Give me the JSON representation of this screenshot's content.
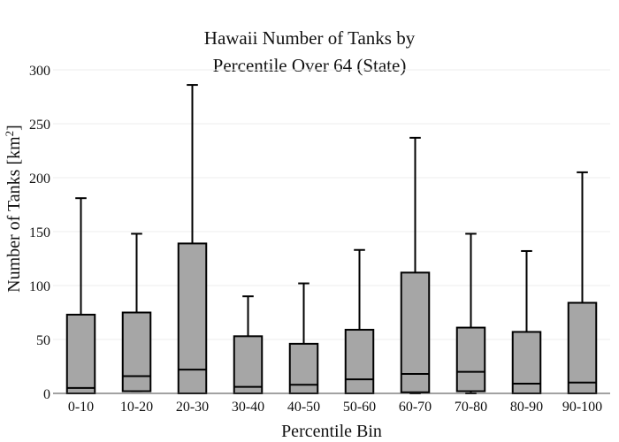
{
  "chart_data": {
    "type": "box",
    "title_lines": [
      "Hawaii Number of Tanks by",
      "Percentile Over 64 (State)"
    ],
    "xlabel": "Percentile Bin",
    "ylabel_main": "Number of Tanks  [km",
    "ylabel_sup": "2",
    "ylabel_close": "]",
    "ylim": [
      0,
      300
    ],
    "yticks": [
      "0",
      "50",
      "100",
      "150",
      "200",
      "250",
      "300"
    ],
    "grid": true,
    "colors": {
      "box_fill": "#a6a6a6",
      "stroke": "#000000",
      "grid": "#eeeeee"
    },
    "categories": [
      "0-10",
      "10-20",
      "20-30",
      "30-40",
      "40-50",
      "50-60",
      "60-70",
      "70-80",
      "80-90",
      "90-100"
    ],
    "boxes": [
      {
        "min": 0,
        "q1": 0,
        "median": 5,
        "q3": 73,
        "max": 181
      },
      {
        "min": 2,
        "q1": 2,
        "median": 16,
        "q3": 75,
        "max": 148
      },
      {
        "min": 0,
        "q1": 0,
        "median": 22,
        "q3": 139,
        "max": 286
      },
      {
        "min": 0,
        "q1": 0,
        "median": 6,
        "q3": 53,
        "max": 90
      },
      {
        "min": 0,
        "q1": 0,
        "median": 8,
        "q3": 46,
        "max": 102
      },
      {
        "min": 0,
        "q1": 0,
        "median": 13,
        "q3": 59,
        "max": 133
      },
      {
        "min": 0,
        "q1": 1,
        "median": 18,
        "q3": 112,
        "max": 237
      },
      {
        "min": 0,
        "q1": 2,
        "median": 20,
        "q3": 61,
        "max": 148
      },
      {
        "min": 0,
        "q1": 0,
        "median": 9,
        "q3": 57,
        "max": 132
      },
      {
        "min": 0,
        "q1": 0,
        "median": 10,
        "q3": 84,
        "max": 205
      }
    ]
  }
}
